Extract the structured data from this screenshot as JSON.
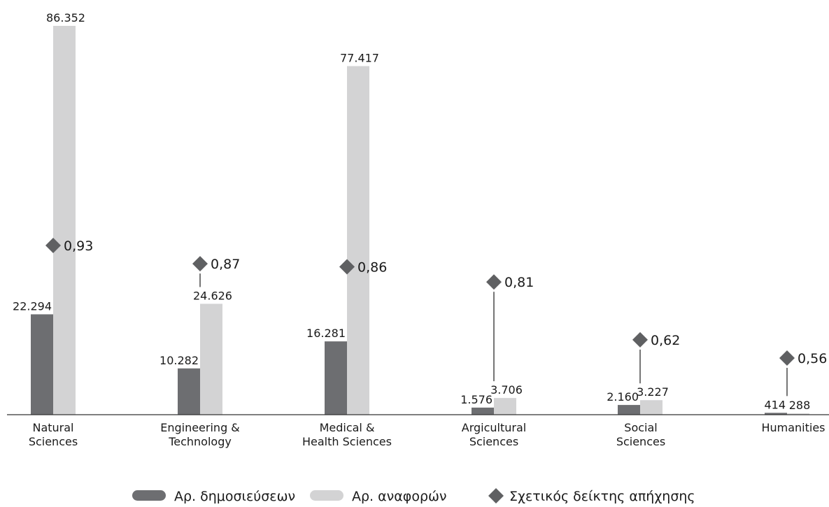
{
  "chart_data": {
    "type": "bar",
    "categories": [
      [
        "Natural",
        "Sciences"
      ],
      [
        "Engineering &",
        "Technology"
      ],
      [
        "Medical &",
        "Health Sciences"
      ],
      [
        "Argicultural",
        "Sciences"
      ],
      [
        "Social",
        "Sciences"
      ],
      [
        "Humanities"
      ]
    ],
    "series": [
      {
        "name": "Αρ. δημοσιεύσεων",
        "color": "#6d6e71",
        "values": [
          22294,
          10282,
          16281,
          1576,
          2160,
          414
        ],
        "labels": [
          "22.294",
          "10.282",
          "16.281",
          "1.576",
          "2.160",
          "414"
        ]
      },
      {
        "name": "Αρ. αναφορών",
        "color": "#d3d3d4",
        "values": [
          86352,
          24626,
          77417,
          3706,
          3227,
          288
        ],
        "labels": [
          "86.352",
          "24.626",
          "77.417",
          "3.706",
          "3.227",
          "288"
        ]
      },
      {
        "name": "Σχετικός δείκτης απήχησης",
        "color": "#5f6062",
        "marker": "diamond",
        "values": [
          0.93,
          0.87,
          0.86,
          0.81,
          0.62,
          0.56
        ],
        "labels": [
          "0,93",
          "0,87",
          "0,86",
          "0,81",
          "0,62",
          "0,56"
        ]
      }
    ],
    "ylim": [
      0,
      86352
    ],
    "legend_position": "bottom-center",
    "grid": false
  }
}
